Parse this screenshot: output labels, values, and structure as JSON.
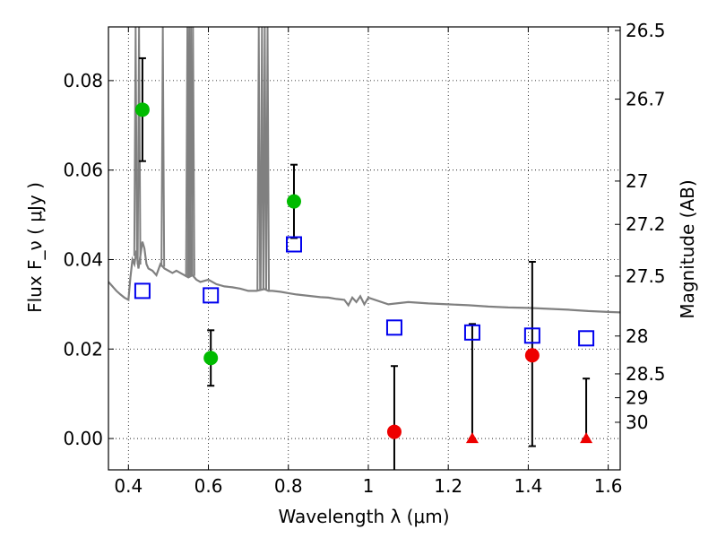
{
  "chart_data": {
    "type": "scatter",
    "title": "",
    "xlabel": "Wavelength  λ (μm)",
    "ylabel": "Flux  F_ν  ( μJy )",
    "ylabel_right": "Magnitude (AB)",
    "xlim": [
      0.35,
      1.63
    ],
    "ylim": [
      -0.007,
      0.092
    ],
    "grid": true,
    "x_ticks": [
      0.4,
      0.6,
      0.8,
      1.0,
      1.2,
      1.4,
      1.6
    ],
    "x_tick_labels": [
      "0.4",
      "0.6",
      "0.8",
      "1",
      "1.2",
      "1.4",
      "1.6"
    ],
    "y_ticks": [
      0.0,
      0.02,
      0.04,
      0.06,
      0.08
    ],
    "y_tick_labels": [
      "0.00",
      "0.02",
      "0.04",
      "0.06",
      "0.08"
    ],
    "right_ticks": [
      {
        "label": "26.5",
        "mag": 26.5
      },
      {
        "label": "26.7",
        "mag": 26.7
      },
      {
        "label": "27",
        "mag": 27.0
      },
      {
        "label": "27.2",
        "mag": 27.2
      },
      {
        "label": "27.5",
        "mag": 27.5
      },
      {
        "label": "28",
        "mag": 28.0
      },
      {
        "label": "28.5",
        "mag": 28.5
      },
      {
        "label": "29",
        "mag": 29.0
      },
      {
        "label": "30",
        "mag": 30.0
      }
    ],
    "colors": {
      "model": "#808080",
      "detection": "#00bb00",
      "nondetection": "#ee0000",
      "model_phot": "#0000ee",
      "errorbar": "#000000"
    },
    "series": [
      {
        "marker": "circle",
        "color_key": "detection",
        "points": [
          {
            "x": 0.435,
            "y": 0.0735,
            "lo": 0.062,
            "hi": 0.085
          },
          {
            "x": 0.606,
            "y": 0.018,
            "lo": 0.0118,
            "hi": 0.0242
          },
          {
            "x": 0.814,
            "y": 0.053,
            "lo": 0.0448,
            "hi": 0.0612
          }
        ]
      },
      {
        "marker": "circle",
        "color_key": "nondetection",
        "points": [
          {
            "x": 1.065,
            "y": 0.0015,
            "lo": -0.0075,
            "hi": 0.0162
          },
          {
            "x": 1.41,
            "y": 0.0186,
            "lo": -0.0017,
            "hi": 0.0395
          }
        ]
      },
      {
        "marker": "triangle",
        "color_key": "nondetection",
        "points": [
          {
            "x": 1.26,
            "y": 0.0,
            "lo": 0.0,
            "hi": 0.0256
          },
          {
            "x": 1.545,
            "y": 0.0,
            "lo": 0.0,
            "hi": 0.0134
          }
        ]
      },
      {
        "marker": "open-square",
        "color_key": "model_phot",
        "points": [
          {
            "x": 0.435,
            "y": 0.033
          },
          {
            "x": 0.606,
            "y": 0.032
          },
          {
            "x": 0.814,
            "y": 0.0434
          },
          {
            "x": 1.065,
            "y": 0.0248
          },
          {
            "x": 1.26,
            "y": 0.0237
          },
          {
            "x": 1.41,
            "y": 0.023
          },
          {
            "x": 1.545,
            "y": 0.0224
          }
        ]
      }
    ],
    "model_spectrum": {
      "x": [
        0.35,
        0.36,
        0.37,
        0.38,
        0.39,
        0.4,
        0.405,
        0.41,
        0.415,
        0.42,
        0.425,
        0.43,
        0.435,
        0.44,
        0.445,
        0.45,
        0.46,
        0.47,
        0.48,
        0.49,
        0.5,
        0.51,
        0.52,
        0.53,
        0.54,
        0.55,
        0.56,
        0.57,
        0.58,
        0.6,
        0.62,
        0.64,
        0.66,
        0.68,
        0.7,
        0.72,
        0.73,
        0.74,
        0.75,
        0.76,
        0.78,
        0.8,
        0.82,
        0.84,
        0.86,
        0.88,
        0.9,
        0.92,
        0.94,
        0.95,
        0.96,
        0.97,
        0.98,
        0.99,
        1.0,
        1.05,
        1.1,
        1.15,
        1.2,
        1.25,
        1.3,
        1.35,
        1.4,
        1.45,
        1.5,
        1.55,
        1.6,
        1.63
      ],
      "y": [
        0.035,
        0.034,
        0.033,
        0.0322,
        0.0315,
        0.031,
        0.036,
        0.04,
        0.039,
        0.042,
        0.038,
        0.041,
        0.044,
        0.0425,
        0.039,
        0.038,
        0.0375,
        0.0365,
        0.039,
        0.038,
        0.0375,
        0.037,
        0.0375,
        0.037,
        0.0365,
        0.036,
        0.0365,
        0.0355,
        0.035,
        0.0355,
        0.0345,
        0.034,
        0.0338,
        0.0335,
        0.033,
        0.033,
        0.0332,
        0.0334,
        0.033,
        0.033,
        0.0328,
        0.0325,
        0.0322,
        0.032,
        0.0318,
        0.0316,
        0.0315,
        0.0312,
        0.031,
        0.0298,
        0.0315,
        0.0305,
        0.0318,
        0.03,
        0.0315,
        0.03,
        0.0305,
        0.0302,
        0.03,
        0.0298,
        0.0295,
        0.0293,
        0.0292,
        0.029,
        0.0288,
        0.0285,
        0.0283,
        0.0282
      ],
      "emission_lines": [
        {
          "x": 0.418,
          "top": 0.092
        },
        {
          "x": 0.4265,
          "top": 0.092
        },
        {
          "x": 0.486,
          "top": 0.092
        },
        {
          "x": 0.5475,
          "top": 0.092
        },
        {
          "x": 0.552,
          "top": 0.092
        },
        {
          "x": 0.5565,
          "top": 0.092
        },
        {
          "x": 0.5615,
          "top": 0.092
        },
        {
          "x": 0.726,
          "top": 0.092
        },
        {
          "x": 0.734,
          "top": 0.092
        },
        {
          "x": 0.741,
          "top": 0.092
        },
        {
          "x": 0.748,
          "top": 0.092
        }
      ]
    }
  }
}
